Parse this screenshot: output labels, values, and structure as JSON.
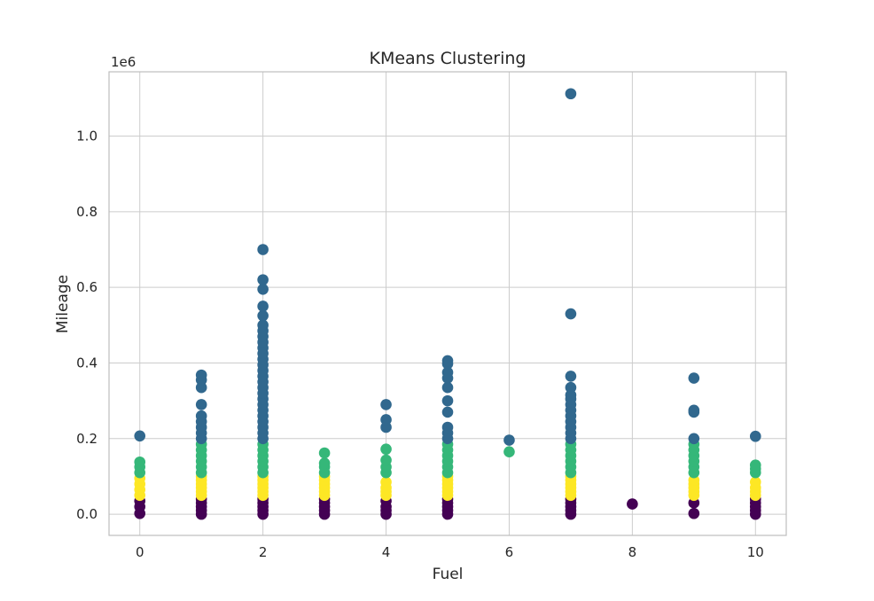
{
  "chart_data": {
    "type": "scatter",
    "title": "KMeans Clustering",
    "xlabel": "Fuel",
    "ylabel": "Mileage",
    "y_offset_label": "1e6",
    "xlim": [
      -0.5,
      10.5
    ],
    "ylim": [
      -0.056,
      1.17
    ],
    "y_scale": 1000000,
    "xticks": [
      0,
      2,
      4,
      6,
      8,
      10
    ],
    "xtick_labels": [
      "0",
      "2",
      "4",
      "6",
      "8",
      "10"
    ],
    "yticks": [
      0.0,
      0.2,
      0.4,
      0.6,
      0.8,
      1.0
    ],
    "ytick_labels": [
      "0.0",
      "0.2",
      "0.4",
      "0.6",
      "0.8",
      "1.0"
    ],
    "grid": true,
    "cluster_colors": {
      "low": "#440154",
      "mid_low": "#fde725",
      "mid_high": "#35b779",
      "high": "#31688e"
    },
    "series": [
      {
        "cluster": "low",
        "color": "#440154",
        "points": [
          [
            0,
            0.002
          ],
          [
            0,
            0.02
          ],
          [
            0,
            0.035
          ],
          [
            1,
            0.0
          ],
          [
            1,
            0.01
          ],
          [
            1,
            0.02
          ],
          [
            1,
            0.03
          ],
          [
            1,
            0.04
          ],
          [
            2,
            0.0
          ],
          [
            2,
            0.01
          ],
          [
            2,
            0.02
          ],
          [
            2,
            0.03
          ],
          [
            2,
            0.04
          ],
          [
            3,
            0.0
          ],
          [
            3,
            0.01
          ],
          [
            3,
            0.02
          ],
          [
            3,
            0.03
          ],
          [
            3,
            0.04
          ],
          [
            4,
            0.0
          ],
          [
            4,
            0.01
          ],
          [
            4,
            0.02
          ],
          [
            4,
            0.035
          ],
          [
            5,
            0.0
          ],
          [
            5,
            0.01
          ],
          [
            5,
            0.02
          ],
          [
            5,
            0.03
          ],
          [
            5,
            0.04
          ],
          [
            7,
            0.0
          ],
          [
            7,
            0.01
          ],
          [
            7,
            0.02
          ],
          [
            7,
            0.03
          ],
          [
            7,
            0.04
          ],
          [
            8,
            0.027
          ],
          [
            9,
            0.002
          ],
          [
            9,
            0.03
          ],
          [
            10,
            0.0
          ],
          [
            10,
            0.01
          ],
          [
            10,
            0.02
          ],
          [
            10,
            0.03
          ],
          [
            10,
            0.04
          ]
        ]
      },
      {
        "cluster": "mid_low",
        "color": "#fde725",
        "points": [
          [
            0,
            0.05
          ],
          [
            0,
            0.065
          ],
          [
            0,
            0.08
          ],
          [
            0,
            0.095
          ],
          [
            1,
            0.05
          ],
          [
            1,
            0.06
          ],
          [
            1,
            0.07
          ],
          [
            1,
            0.08
          ],
          [
            1,
            0.09
          ],
          [
            1,
            0.1
          ],
          [
            2,
            0.05
          ],
          [
            2,
            0.06
          ],
          [
            2,
            0.07
          ],
          [
            2,
            0.08
          ],
          [
            2,
            0.09
          ],
          [
            2,
            0.1
          ],
          [
            3,
            0.05
          ],
          [
            3,
            0.06
          ],
          [
            3,
            0.07
          ],
          [
            3,
            0.08
          ],
          [
            3,
            0.09
          ],
          [
            3,
            0.1
          ],
          [
            4,
            0.05
          ],
          [
            4,
            0.06
          ],
          [
            4,
            0.07
          ],
          [
            4,
            0.085
          ],
          [
            5,
            0.05
          ],
          [
            5,
            0.06
          ],
          [
            5,
            0.07
          ],
          [
            5,
            0.08
          ],
          [
            5,
            0.09
          ],
          [
            5,
            0.1
          ],
          [
            7,
            0.05
          ],
          [
            7,
            0.06
          ],
          [
            7,
            0.07
          ],
          [
            7,
            0.08
          ],
          [
            7,
            0.09
          ],
          [
            7,
            0.1
          ],
          [
            9,
            0.05
          ],
          [
            9,
            0.06
          ],
          [
            9,
            0.07
          ],
          [
            9,
            0.08
          ],
          [
            9,
            0.09
          ],
          [
            10,
            0.05
          ],
          [
            10,
            0.06
          ],
          [
            10,
            0.07
          ],
          [
            10,
            0.085
          ]
        ]
      },
      {
        "cluster": "mid_high",
        "color": "#35b779",
        "points": [
          [
            0,
            0.11
          ],
          [
            0,
            0.125
          ],
          [
            0,
            0.138
          ],
          [
            1,
            0.11
          ],
          [
            1,
            0.125
          ],
          [
            1,
            0.14
          ],
          [
            1,
            0.155
          ],
          [
            1,
            0.17
          ],
          [
            1,
            0.185
          ],
          [
            2,
            0.11
          ],
          [
            2,
            0.125
          ],
          [
            2,
            0.14
          ],
          [
            2,
            0.155
          ],
          [
            2,
            0.17
          ],
          [
            2,
            0.185
          ],
          [
            3,
            0.11
          ],
          [
            3,
            0.125
          ],
          [
            3,
            0.135
          ],
          [
            3,
            0.162
          ],
          [
            4,
            0.11
          ],
          [
            4,
            0.125
          ],
          [
            4,
            0.143
          ],
          [
            4,
            0.172
          ],
          [
            5,
            0.11
          ],
          [
            5,
            0.125
          ],
          [
            5,
            0.14
          ],
          [
            5,
            0.155
          ],
          [
            5,
            0.17
          ],
          [
            5,
            0.185
          ],
          [
            6,
            0.165
          ],
          [
            7,
            0.11
          ],
          [
            7,
            0.125
          ],
          [
            7,
            0.14
          ],
          [
            7,
            0.155
          ],
          [
            7,
            0.17
          ],
          [
            7,
            0.185
          ],
          [
            9,
            0.11
          ],
          [
            9,
            0.125
          ],
          [
            9,
            0.14
          ],
          [
            9,
            0.155
          ],
          [
            9,
            0.17
          ],
          [
            9,
            0.185
          ],
          [
            10,
            0.11
          ],
          [
            10,
            0.12
          ],
          [
            10,
            0.13
          ]
        ]
      },
      {
        "cluster": "high",
        "color": "#31688e",
        "points": [
          [
            0,
            0.207
          ],
          [
            1,
            0.2
          ],
          [
            1,
            0.215
          ],
          [
            1,
            0.23
          ],
          [
            1,
            0.245
          ],
          [
            1,
            0.26
          ],
          [
            1,
            0.29
          ],
          [
            1,
            0.335
          ],
          [
            1,
            0.355
          ],
          [
            1,
            0.368
          ],
          [
            2,
            0.2
          ],
          [
            2,
            0.215
          ],
          [
            2,
            0.23
          ],
          [
            2,
            0.245
          ],
          [
            2,
            0.26
          ],
          [
            2,
            0.275
          ],
          [
            2,
            0.29
          ],
          [
            2,
            0.305
          ],
          [
            2,
            0.32
          ],
          [
            2,
            0.335
          ],
          [
            2,
            0.35
          ],
          [
            2,
            0.365
          ],
          [
            2,
            0.38
          ],
          [
            2,
            0.395
          ],
          [
            2,
            0.41
          ],
          [
            2,
            0.425
          ],
          [
            2,
            0.44
          ],
          [
            2,
            0.455
          ],
          [
            2,
            0.47
          ],
          [
            2,
            0.485
          ],
          [
            2,
            0.5
          ],
          [
            2,
            0.525
          ],
          [
            2,
            0.55
          ],
          [
            2,
            0.595
          ],
          [
            2,
            0.62
          ],
          [
            2,
            0.7
          ],
          [
            4,
            0.23
          ],
          [
            4,
            0.25
          ],
          [
            4,
            0.29
          ],
          [
            5,
            0.2
          ],
          [
            5,
            0.215
          ],
          [
            5,
            0.23
          ],
          [
            5,
            0.27
          ],
          [
            5,
            0.3
          ],
          [
            5,
            0.335
          ],
          [
            5,
            0.36
          ],
          [
            5,
            0.375
          ],
          [
            5,
            0.398
          ],
          [
            5,
            0.406
          ],
          [
            6,
            0.196
          ],
          [
            7,
            0.2
          ],
          [
            7,
            0.215
          ],
          [
            7,
            0.23
          ],
          [
            7,
            0.245
          ],
          [
            7,
            0.26
          ],
          [
            7,
            0.275
          ],
          [
            7,
            0.29
          ],
          [
            7,
            0.305
          ],
          [
            7,
            0.315
          ],
          [
            7,
            0.335
          ],
          [
            7,
            0.365
          ],
          [
            7,
            0.53
          ],
          [
            7,
            1.112
          ],
          [
            9,
            0.2
          ],
          [
            9,
            0.27
          ],
          [
            9,
            0.275
          ],
          [
            9,
            0.36
          ],
          [
            10,
            0.206
          ]
        ]
      }
    ]
  }
}
